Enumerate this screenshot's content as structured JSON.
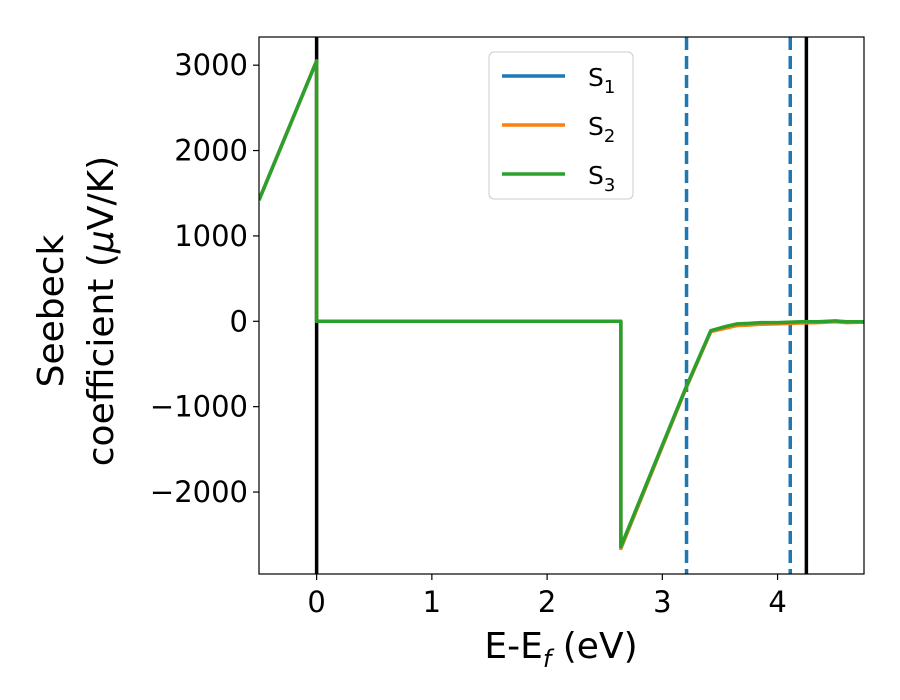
{
  "chart_data": {
    "type": "line",
    "xlabel": "E-E",
    "xlabel_sub": "f",
    "xlabel_unit": " (eV)",
    "ylabel_line1": "Seebeck",
    "ylabel_line2": "coefficient  (",
    "ylabel_mu": "μ",
    "ylabel_unit": "V/K)",
    "xlim": [
      -0.5,
      4.75
    ],
    "ylim": [
      -2960,
      3330
    ],
    "x_ticks": [
      0,
      1,
      2,
      3,
      4
    ],
    "x_tick_labels": [
      "0",
      "1",
      "2",
      "3",
      "4"
    ],
    "y_ticks": [
      3000,
      2000,
      1000,
      0,
      -1000,
      -2000
    ],
    "y_tick_labels": [
      "3000",
      "2000",
      "1000",
      "0",
      "−1000",
      "−2000"
    ],
    "grid": false,
    "legend_position": "top-center",
    "vertical_lines": [
      {
        "x": 0.0,
        "style": "solid",
        "color": "#000000"
      },
      {
        "x": 4.25,
        "style": "solid",
        "color": "#000000"
      },
      {
        "x": 3.21,
        "style": "dashed",
        "color": "#1f77b4"
      },
      {
        "x": 4.11,
        "style": "dashed",
        "color": "#1f77b4"
      }
    ],
    "series": [
      {
        "name": "S",
        "sub": "1",
        "color": "#1f77b4",
        "points": [
          [
            -0.5,
            1420
          ],
          [
            0,
            3050
          ],
          [
            0,
            0
          ],
          [
            2.64,
            0
          ],
          [
            2.64,
            -2660
          ],
          [
            3.2,
            -800
          ],
          [
            3.42,
            -120
          ],
          [
            3.55,
            -70
          ],
          [
            3.65,
            -40
          ],
          [
            3.75,
            -30
          ],
          [
            3.85,
            -20
          ],
          [
            4.0,
            -20
          ],
          [
            4.2,
            -10
          ],
          [
            4.35,
            -10
          ],
          [
            4.5,
            0
          ],
          [
            4.6,
            -10
          ],
          [
            4.75,
            -10
          ]
        ]
      },
      {
        "name": "S",
        "sub": "2",
        "color": "#ff7f0e",
        "points": [
          [
            -0.5,
            1420
          ],
          [
            0,
            3050
          ],
          [
            0,
            0
          ],
          [
            2.64,
            0
          ],
          [
            2.64,
            -2660
          ],
          [
            3.2,
            -800
          ],
          [
            3.42,
            -120
          ],
          [
            3.55,
            -80
          ],
          [
            3.65,
            -50
          ],
          [
            3.75,
            -45
          ],
          [
            3.85,
            -35
          ],
          [
            4.0,
            -30
          ],
          [
            4.2,
            -20
          ],
          [
            4.35,
            -15
          ],
          [
            4.5,
            -5
          ],
          [
            4.6,
            -15
          ],
          [
            4.75,
            -10
          ]
        ]
      },
      {
        "name": "S",
        "sub": "3",
        "color": "#2ca02c",
        "points": [
          [
            -0.5,
            1420
          ],
          [
            0,
            3050
          ],
          [
            0,
            0
          ],
          [
            2.64,
            0
          ],
          [
            2.64,
            -2640
          ],
          [
            3.2,
            -790
          ],
          [
            3.42,
            -110
          ],
          [
            3.55,
            -60
          ],
          [
            3.65,
            -30
          ],
          [
            3.75,
            -25
          ],
          [
            3.85,
            -15
          ],
          [
            4.0,
            -15
          ],
          [
            4.2,
            -5
          ],
          [
            4.35,
            -5
          ],
          [
            4.5,
            5
          ],
          [
            4.6,
            -5
          ],
          [
            4.75,
            -5
          ]
        ]
      }
    ]
  }
}
